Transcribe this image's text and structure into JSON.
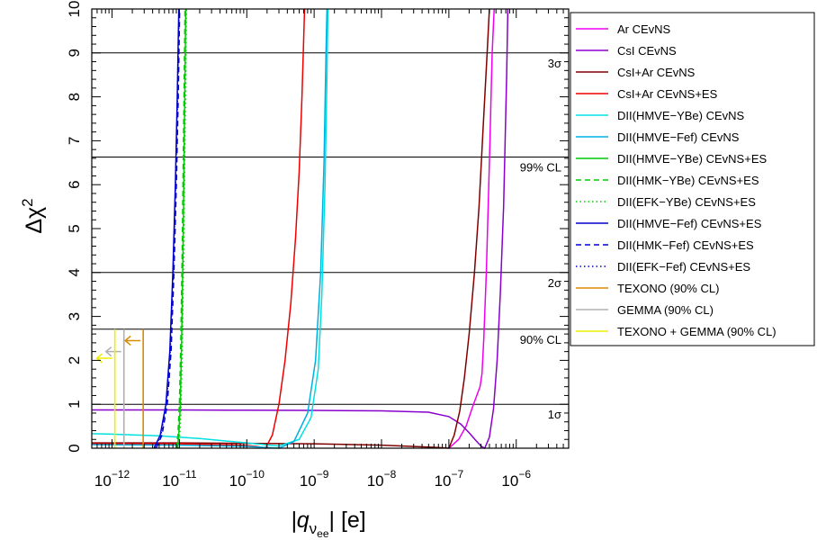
{
  "chart_data": {
    "type": "line",
    "title": "",
    "xlabel": {
      "main": "|q",
      "sub": "ν",
      "subsub": "ee",
      "unit": "[e]"
    },
    "ylabel": {
      "main": "Δχ",
      "sup": "2"
    },
    "x_scale": "log",
    "xlim": [
      5e-13,
      6e-06
    ],
    "ylim": [
      0,
      10
    ],
    "x_ticks": [
      {
        "value": 1e-12,
        "base": "10",
        "exp": "−12"
      },
      {
        "value": 1e-11,
        "base": "10",
        "exp": "−11"
      },
      {
        "value": 1e-10,
        "base": "10",
        "exp": "−10"
      },
      {
        "value": 1e-09,
        "base": "10",
        "exp": "−9"
      },
      {
        "value": 1e-08,
        "base": "10",
        "exp": "−8"
      },
      {
        "value": 1e-07,
        "base": "10",
        "exp": "−7"
      },
      {
        "value": 1e-06,
        "base": "10",
        "exp": "−6"
      }
    ],
    "y_ticks": [
      0,
      1,
      2,
      3,
      4,
      5,
      6,
      7,
      8,
      9,
      10
    ],
    "reference_lines": [
      {
        "y": 1.0,
        "label": "1σ"
      },
      {
        "y": 2.71,
        "label": "90% CL"
      },
      {
        "y": 4.0,
        "label": "2σ"
      },
      {
        "y": 6.63,
        "label": "99% CL"
      },
      {
        "y": 9.0,
        "label": "3σ"
      }
    ],
    "legend_position": "right",
    "series": [
      {
        "name": "Ar CEvNS",
        "color": "#ee00ee",
        "dash": "solid",
        "points": [
          [
            1e-07,
            0
          ],
          [
            1.4e-07,
            0.2
          ],
          [
            1.8e-07,
            0.5
          ],
          [
            2.2e-07,
            0.9
          ],
          [
            2.6e-07,
            1.2
          ],
          [
            2.9e-07,
            1.4
          ],
          [
            3.1e-07,
            1.7
          ],
          [
            3.3e-07,
            2.5
          ],
          [
            3.6e-07,
            4.0
          ],
          [
            4e-07,
            6.5
          ],
          [
            4.4e-07,
            9.0
          ],
          [
            4.7e-07,
            10
          ]
        ]
      },
      {
        "name": "CsI CEvNS",
        "color": "#8800cc",
        "dash": "solid",
        "points": [
          [
            5e-13,
            0.87
          ],
          [
            1e-12,
            0.87
          ],
          [
            1e-11,
            0.87
          ],
          [
            1e-10,
            0.865
          ],
          [
            1e-09,
            0.86
          ],
          [
            1e-08,
            0.85
          ],
          [
            5e-08,
            0.82
          ],
          [
            1e-07,
            0.72
          ],
          [
            1.5e-07,
            0.55
          ],
          [
            2e-07,
            0.35
          ],
          [
            2.5e-07,
            0.18
          ],
          [
            3e-07,
            0.05
          ],
          [
            3.4e-07,
            0
          ],
          [
            4e-07,
            0.25
          ],
          [
            4.6e-07,
            0.9
          ],
          [
            5.2e-07,
            2.0
          ],
          [
            5.8e-07,
            3.5
          ],
          [
            6.5e-07,
            5.5
          ],
          [
            7.2e-07,
            8.5
          ],
          [
            7.5e-07,
            10
          ]
        ]
      },
      {
        "name": "CsI+Ar CEvNS",
        "color": "#800000",
        "dash": "solid",
        "points": [
          [
            5e-13,
            0.12
          ],
          [
            1e-11,
            0.12
          ],
          [
            1e-09,
            0.1
          ],
          [
            1e-08,
            0.07
          ],
          [
            6e-08,
            0.02
          ],
          [
            1e-07,
            0
          ],
          [
            1.2e-07,
            0.3
          ],
          [
            1.45e-07,
            0.85
          ],
          [
            1.7e-07,
            1.6
          ],
          [
            2e-07,
            2.6
          ],
          [
            2.4e-07,
            4.0
          ],
          [
            2.8e-07,
            5.5
          ],
          [
            3.2e-07,
            7.2
          ],
          [
            3.7e-07,
            9.0
          ],
          [
            4e-07,
            10
          ]
        ]
      },
      {
        "name": "CsI+Ar CEvNS+ES",
        "color": "#ee0000",
        "dash": "solid",
        "points": [
          [
            5e-13,
            0.1
          ],
          [
            1e-11,
            0.1
          ],
          [
            8e-11,
            0.07
          ],
          [
            1.4e-10,
            0.04
          ],
          [
            1.9e-10,
            0
          ],
          [
            2.4e-10,
            0.3
          ],
          [
            3e-10,
            1.0
          ],
          [
            3.7e-10,
            2.0
          ],
          [
            4.5e-10,
            3.3
          ],
          [
            5.3e-10,
            4.8
          ],
          [
            6e-10,
            6.3
          ],
          [
            6.6e-10,
            8.0
          ],
          [
            7.2e-10,
            10
          ]
        ]
      },
      {
        "name": "DII(HMVE−YBe) CEvNS",
        "color": "#00e0e0",
        "dash": "solid",
        "points": [
          [
            5e-13,
            0.33
          ],
          [
            1e-12,
            0.32
          ],
          [
            5e-12,
            0.28
          ],
          [
            2e-11,
            0.22
          ],
          [
            1e-10,
            0.12
          ],
          [
            3e-10,
            0.05
          ],
          [
            6e-10,
            0.2
          ],
          [
            9e-10,
            0.7
          ],
          [
            1.15e-09,
            1.8
          ],
          [
            1.3e-09,
            3.5
          ],
          [
            1.45e-09,
            6.0
          ],
          [
            1.55e-09,
            8.5
          ],
          [
            1.6e-09,
            10
          ]
        ]
      },
      {
        "name": "DII(HMVE−Fef) CEvNS",
        "color": "#00b0e0",
        "dash": "solid",
        "points": [
          [
            5e-13,
            0.08
          ],
          [
            1e-11,
            0.07
          ],
          [
            1e-10,
            0.04
          ],
          [
            3e-10,
            0
          ],
          [
            5e-10,
            0.15
          ],
          [
            8e-10,
            0.8
          ],
          [
            1.05e-09,
            2.0
          ],
          [
            1.25e-09,
            4.0
          ],
          [
            1.4e-09,
            6.5
          ],
          [
            1.5e-09,
            9.0
          ],
          [
            1.55e-09,
            10
          ]
        ]
      },
      {
        "name": "DII(HMVE−YBe) CEvNS+ES",
        "color": "#00cc00",
        "dash": "solid",
        "points": [
          [
            9.3e-12,
            0
          ],
          [
            9.8e-12,
            0.3
          ],
          [
            1.03e-11,
            1.0
          ],
          [
            1.08e-11,
            2.5
          ],
          [
            1.13e-11,
            4.5
          ],
          [
            1.18e-11,
            7.0
          ],
          [
            1.22e-11,
            9.0
          ],
          [
            1.24e-11,
            10
          ]
        ]
      },
      {
        "name": "DII(HMK−YBe) CEvNS+ES",
        "color": "#00cc00",
        "dash": "dashed",
        "points": [
          [
            9e-12,
            0
          ],
          [
            9.5e-12,
            0.3
          ],
          [
            1e-11,
            1.0
          ],
          [
            1.05e-11,
            2.5
          ],
          [
            1.1e-11,
            4.5
          ],
          [
            1.15e-11,
            7.0
          ],
          [
            1.19e-11,
            9.0
          ],
          [
            1.21e-11,
            10
          ]
        ]
      },
      {
        "name": "DII(EFK−YBe) CEvNS+ES",
        "color": "#00cc00",
        "dash": "dotted",
        "points": [
          [
            9.6e-12,
            0
          ],
          [
            1.01e-11,
            0.3
          ],
          [
            1.06e-11,
            1.0
          ],
          [
            1.11e-11,
            2.5
          ],
          [
            1.16e-11,
            4.5
          ],
          [
            1.21e-11,
            7.0
          ],
          [
            1.25e-11,
            9.0
          ],
          [
            1.27e-11,
            10
          ]
        ]
      },
      {
        "name": "DII(HMVE−Fef) CEvNS+ES",
        "color": "#0000cc",
        "dash": "solid",
        "points": [
          [
            4.2e-12,
            0
          ],
          [
            5.2e-12,
            0.3
          ],
          [
            6.3e-12,
            1.0
          ],
          [
            7.2e-12,
            2.2
          ],
          [
            8e-12,
            4.0
          ],
          [
            8.7e-12,
            6.0
          ],
          [
            9.3e-12,
            8.0
          ],
          [
            9.8e-12,
            10
          ]
        ]
      },
      {
        "name": "DII(HMK−Fef) CEvNS+ES",
        "color": "#0000cc",
        "dash": "dashed",
        "points": [
          [
            4.5e-12,
            0
          ],
          [
            5.5e-12,
            0.3
          ],
          [
            6.6e-12,
            1.0
          ],
          [
            7.5e-12,
            2.2
          ],
          [
            8.3e-12,
            4.0
          ],
          [
            9e-12,
            6.0
          ],
          [
            9.6e-12,
            8.0
          ],
          [
            1.01e-11,
            10
          ]
        ]
      },
      {
        "name": "DII(EFK−Fef) CEvNS+ES",
        "color": "#0000cc",
        "dash": "dotted",
        "points": [
          [
            4.3e-12,
            0
          ],
          [
            5.3e-12,
            0.3
          ],
          [
            6.4e-12,
            1.0
          ],
          [
            7.3e-12,
            2.2
          ],
          [
            8.1e-12,
            4.0
          ],
          [
            8.8e-12,
            6.0
          ],
          [
            9.4e-12,
            8.0
          ],
          [
            9.9e-12,
            10
          ]
        ]
      },
      {
        "name": "TEXONO (90% CL)",
        "color": "#d88a00",
        "dash": "solid",
        "kind": "limit",
        "limit_x": 2.9e-12,
        "arrow_y": 2.45
      },
      {
        "name": "GEMMA (90% CL)",
        "color": "#b0b0b0",
        "dash": "solid",
        "kind": "limit",
        "limit_x": 1.5e-12,
        "arrow_y": 2.2
      },
      {
        "name": "TEXONO + GEMMA (90% CL)",
        "color": "#eeee00",
        "dash": "solid",
        "kind": "limit",
        "limit_x": 1.1e-12,
        "arrow_y": 2.05
      }
    ]
  }
}
